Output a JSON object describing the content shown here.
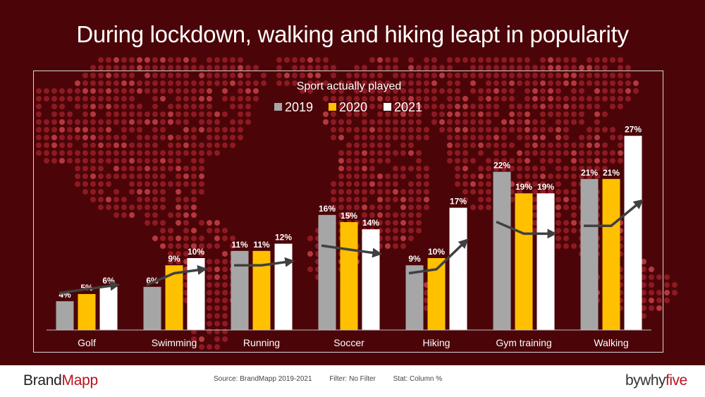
{
  "title": "During lockdown, walking and hiking leapt in popularity",
  "colors": {
    "background": "#4b0508",
    "map_dots": "#a3222b",
    "map_dots_light": "#d84a52",
    "series_2019": "#a6a6a6",
    "series_2020": "#ffc000",
    "series_2021": "#ffffff",
    "trend_arrow": "#404040",
    "brand_red": "#b8121b"
  },
  "chart_data": {
    "type": "bar",
    "title": "Sport actually played",
    "categories": [
      "Golf",
      "Swimming",
      "Running",
      "Soccer",
      "Hiking",
      "Gym training",
      "Walking"
    ],
    "series": [
      {
        "name": "2019",
        "values": [
          4,
          6,
          11,
          16,
          9,
          22,
          21
        ]
      },
      {
        "name": "2020",
        "values": [
          5,
          9,
          11,
          15,
          10,
          19,
          21
        ]
      },
      {
        "name": "2021",
        "values": [
          6,
          10,
          12,
          14,
          17,
          19,
          27
        ]
      }
    ],
    "value_suffix": "%",
    "legend": "top-center",
    "grid": false,
    "ylim": [
      0,
      28
    ],
    "trend_arrows": true
  },
  "footer": {
    "brand_left_part1": "Brand",
    "brand_left_part2": "Mapp",
    "source": "Source: BrandMapp 2019-2021",
    "filter": "Filter: No Filter",
    "stat": "Stat: Column %",
    "brand_right_part1": "bywhy",
    "brand_right_part2": "five"
  }
}
